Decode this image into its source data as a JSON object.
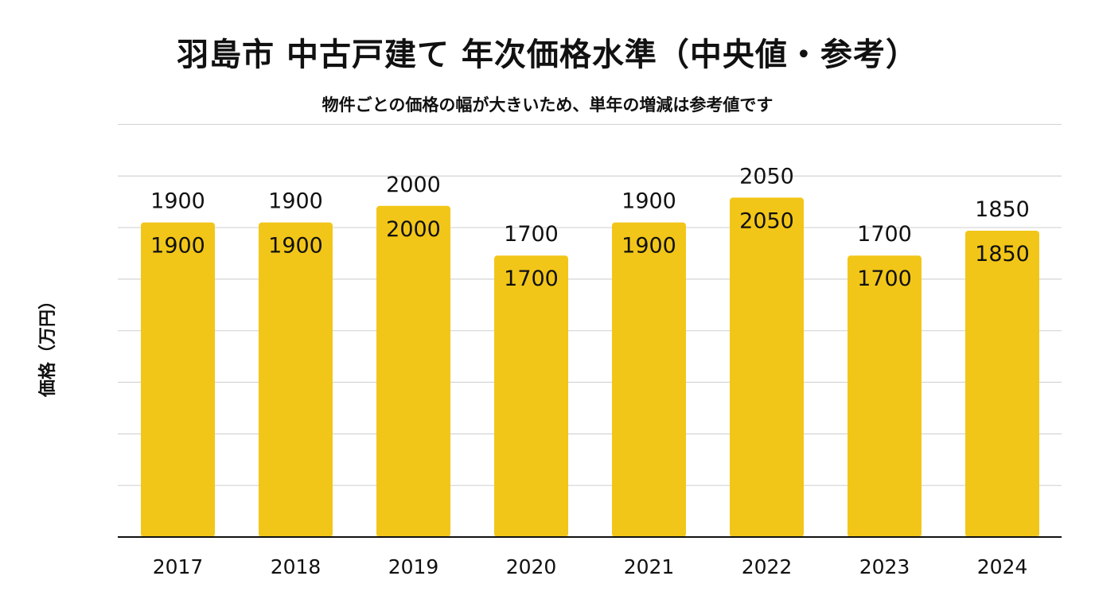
{
  "title": "羽島市 中古戸建て 年次価格水準（中央値・参考）",
  "subtitle": "物件ごとの価格の幅が大きいため、単年の増減は参考値です",
  "colors": {
    "bar": "#F2C618",
    "grid": "#d4d4d4",
    "axis": "#111111",
    "text": "#111111"
  },
  "chart_data": {
    "type": "bar",
    "title": "羽島市 中古戸建て 年次価格水準（中央値・参考）",
    "subtitle": "物件ごとの価格の幅が大きいため、単年の増減は参考値です",
    "xlabel": "",
    "ylabel": "価格（万円）",
    "categories": [
      "2017",
      "2018",
      "2019",
      "2020",
      "2021",
      "2022",
      "2023",
      "2024"
    ],
    "values": [
      1900,
      1900,
      2000,
      1700,
      1900,
      2050,
      1700,
      1850
    ],
    "grid": true,
    "y_tick_labels_shown": false,
    "data_labels": "above and inside each bar"
  }
}
